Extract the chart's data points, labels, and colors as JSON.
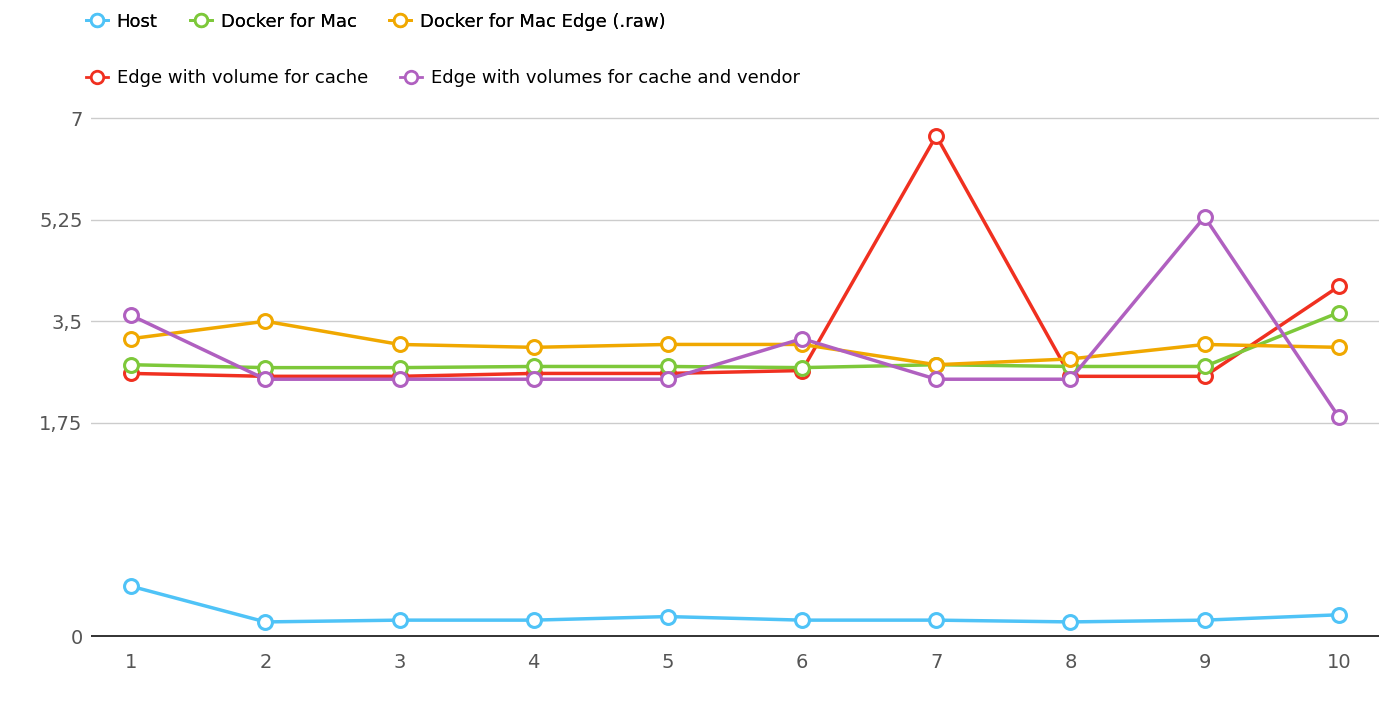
{
  "x": [
    1,
    2,
    3,
    4,
    5,
    6,
    7,
    8,
    9,
    10
  ],
  "series": {
    "host": {
      "label": "Host",
      "color": "#4FC3F7",
      "data": [
        0.28,
        0.08,
        0.09,
        0.09,
        0.11,
        0.09,
        0.09,
        0.08,
        0.09,
        0.12
      ]
    },
    "edge_volume_cache": {
      "label": "Edge with volume for cache",
      "color": "#F03020",
      "data": [
        2.6,
        2.55,
        2.55,
        2.6,
        2.6,
        2.65,
        6.7,
        2.55,
        2.55,
        4.1
      ]
    },
    "docker_mac": {
      "label": "Docker for Mac",
      "color": "#7DC83A",
      "data": [
        2.75,
        2.7,
        2.7,
        2.72,
        2.72,
        2.7,
        2.75,
        2.72,
        2.72,
        3.65
      ]
    },
    "docker_mac_edge_raw": {
      "label": "Docker for Mac Edge (.raw)",
      "color": "#F0A800",
      "data": [
        3.2,
        3.5,
        3.1,
        3.05,
        3.1,
        3.1,
        2.75,
        2.85,
        3.1,
        3.05
      ]
    },
    "edge_volumes_cache_vendor": {
      "label": "Edge with volumes for cache and vendor",
      "color": "#B060C0",
      "data": [
        3.6,
        2.5,
        2.5,
        2.5,
        2.5,
        3.2,
        2.5,
        2.5,
        5.3,
        1.85
      ]
    }
  },
  "upper_ylim": [
    1.5,
    7.4
  ],
  "upper_yticks": [
    1.75,
    3.5,
    5.25,
    7
  ],
  "upper_ytick_labels": [
    "1,75",
    "3,5",
    "5,25",
    "7"
  ],
  "lower_ylim": [
    -0.05,
    0.55
  ],
  "lower_yticks": [
    0
  ],
  "lower_ytick_labels": [
    "0"
  ],
  "xlim": [
    0.7,
    10.3
  ],
  "xticks": [
    1,
    2,
    3,
    4,
    5,
    6,
    7,
    8,
    9,
    10
  ],
  "xtick_labels": [
    "1",
    "2",
    "3",
    "4",
    "5",
    "6",
    "7",
    "8",
    "9",
    "10"
  ],
  "background_color": "#FFFFFF",
  "grid_color": "#CCCCCC",
  "axis_line_color": "#AAAAAA",
  "tick_label_color": "#555555",
  "marker_size": 10,
  "line_width": 2.5,
  "marker_linewidth": 2.2,
  "legend_fontsize": 13,
  "tick_fontsize": 14
}
